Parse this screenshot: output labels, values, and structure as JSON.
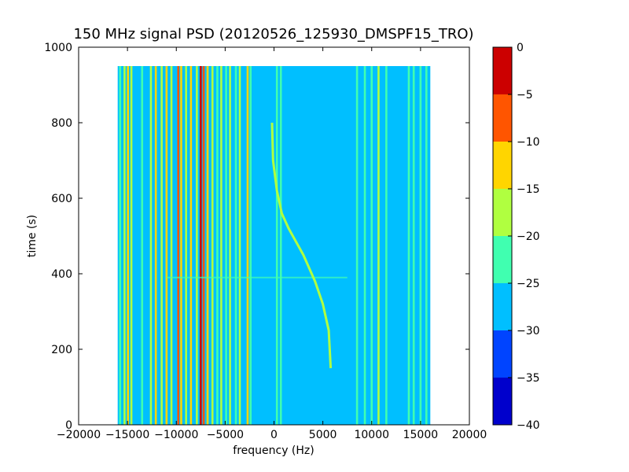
{
  "chart_data": {
    "type": "heatmap",
    "title": "150 MHz signal PSD (20120526_125930_DMSPF15_TRO)",
    "xlabel": "frequency (Hz)",
    "ylabel": "time (s)",
    "xlim": [
      -20000,
      20000
    ],
    "ylim": [
      0,
      1000
    ],
    "xticks": [
      -20000,
      -15000,
      -10000,
      -5000,
      0,
      5000,
      10000,
      15000,
      20000
    ],
    "xtick_labels": [
      "−20000",
      "−15000",
      "−10000",
      "−5000",
      "0",
      "5000",
      "10000",
      "15000",
      "20000"
    ],
    "yticks": [
      0,
      200,
      400,
      600,
      800,
      1000
    ],
    "ytick_labels": [
      "0",
      "200",
      "400",
      "600",
      "800",
      "1000"
    ],
    "data_extent": {
      "freq": [
        -16000,
        16000
      ],
      "time": [
        0,
        950
      ]
    },
    "background_level": -27.5,
    "colorbar": {
      "levels": [
        -40,
        -35,
        -30,
        -25,
        -20,
        -15,
        -10,
        -5,
        0
      ],
      "tick_labels": [
        "−40",
        "−35",
        "−30",
        "−25",
        "−20",
        "−15",
        "−10",
        "−5",
        "0"
      ],
      "colors": [
        "#0000cc",
        "#0044ff",
        "#00bfff",
        "#40ffb0",
        "#b0ff40",
        "#ffd500",
        "#ff5500",
        "#cc0000"
      ]
    },
    "lines": [
      {
        "f": -15750,
        "level": -22.5
      },
      {
        "f": -15300,
        "level": -17.5
      },
      {
        "f": -14950,
        "level": -12.5
      },
      {
        "f": -14600,
        "level": -17.5
      },
      {
        "f": -13500,
        "level": -22.5
      },
      {
        "f": -12600,
        "level": -17.5
      },
      {
        "f": -12100,
        "level": -12.5
      },
      {
        "f": -11500,
        "level": -17.5
      },
      {
        "f": -11000,
        "level": -12.5
      },
      {
        "f": -10500,
        "level": -17.5
      },
      {
        "f": -9800,
        "level": -7.5
      },
      {
        "f": -9500,
        "level": -12.5
      },
      {
        "f": -9000,
        "level": -17.5
      },
      {
        "f": -8500,
        "level": -12.5
      },
      {
        "f": -7900,
        "level": -17.5
      },
      {
        "f": -7500,
        "level": -2.5
      },
      {
        "f": -7200,
        "level": -7.5
      },
      {
        "f": -6800,
        "level": -12.5
      },
      {
        "f": -6300,
        "level": -17.5
      },
      {
        "f": -5800,
        "level": -22.5
      },
      {
        "f": -5400,
        "level": -17.5
      },
      {
        "f": -4900,
        "level": -22.5
      },
      {
        "f": -4500,
        "level": -17.5
      },
      {
        "f": -3900,
        "level": -22.5
      },
      {
        "f": -3500,
        "level": -17.5
      },
      {
        "f": -2700,
        "level": -12.5
      },
      {
        "f": -2400,
        "level": -22.5
      },
      {
        "f": 300,
        "level": -22.5
      },
      {
        "f": 700,
        "level": -22.5
      },
      {
        "f": 8500,
        "level": -22.5
      },
      {
        "f": 9300,
        "level": -22.5
      },
      {
        "f": 10000,
        "level": -22.5
      },
      {
        "f": 10700,
        "level": -17.5
      },
      {
        "f": 11500,
        "level": -22.5
      },
      {
        "f": 13800,
        "level": -22.5
      },
      {
        "f": 14300,
        "level": -22.5
      },
      {
        "f": 15000,
        "level": -22.5
      },
      {
        "f": 15600,
        "level": -22.5
      }
    ],
    "doppler_curve": {
      "level": -17.5,
      "points": [
        {
          "f": 5800,
          "t": 150
        },
        {
          "f": 5600,
          "t": 250
        },
        {
          "f": 5000,
          "t": 320
        },
        {
          "f": 4200,
          "t": 380
        },
        {
          "f": 3000,
          "t": 450
        },
        {
          "f": 1500,
          "t": 520
        },
        {
          "f": 800,
          "t": 560
        },
        {
          "f": 300,
          "t": 620
        },
        {
          "f": -100,
          "t": 700
        },
        {
          "f": -200,
          "t": 800
        }
      ]
    },
    "horizontal_streak": {
      "t": 390,
      "f_range": [
        -11000,
        7500
      ],
      "level": -22.5
    }
  }
}
